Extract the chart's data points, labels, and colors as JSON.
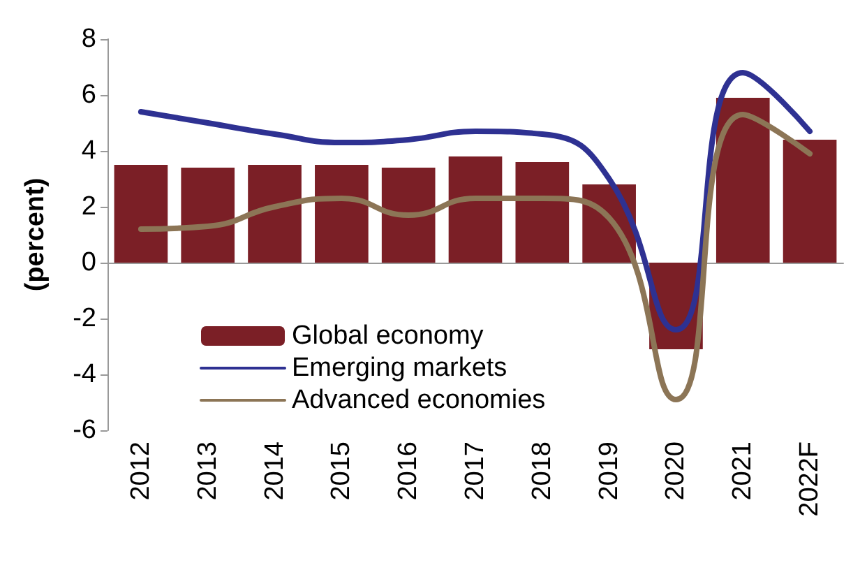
{
  "chart_data": {
    "type": "bar",
    "ylabel": "(percent)",
    "categories": [
      "2012",
      "2013",
      "2014",
      "2015",
      "2016",
      "2017",
      "2018",
      "2019",
      "2020",
      "2021",
      "2022F"
    ],
    "series": [
      {
        "name": "Global economy",
        "color": "#7b1f26",
        "values": [
          3.5,
          3.4,
          3.5,
          3.5,
          3.4,
          3.8,
          3.6,
          2.8,
          -3.1,
          5.9,
          4.4
        ]
      },
      {
        "name": "Emerging markets",
        "type": "line",
        "color": "#2e3192",
        "values": [
          5.4,
          5.0,
          4.6,
          4.3,
          4.4,
          4.7,
          4.6,
          3.0,
          -2.4,
          6.8,
          4.7
        ]
      },
      {
        "name": "Advanced economies",
        "type": "line",
        "color": "#8c7556",
        "values": [
          1.2,
          1.3,
          2.0,
          2.3,
          1.7,
          2.3,
          2.3,
          1.6,
          -4.9,
          5.3,
          3.9
        ]
      }
    ],
    "ylim": [
      -6,
      8
    ],
    "yticks": [
      -6,
      -4,
      -2,
      0,
      2,
      4,
      6,
      8
    ],
    "legend": "bottom left",
    "marker": "none",
    "line_style": "solid"
  }
}
